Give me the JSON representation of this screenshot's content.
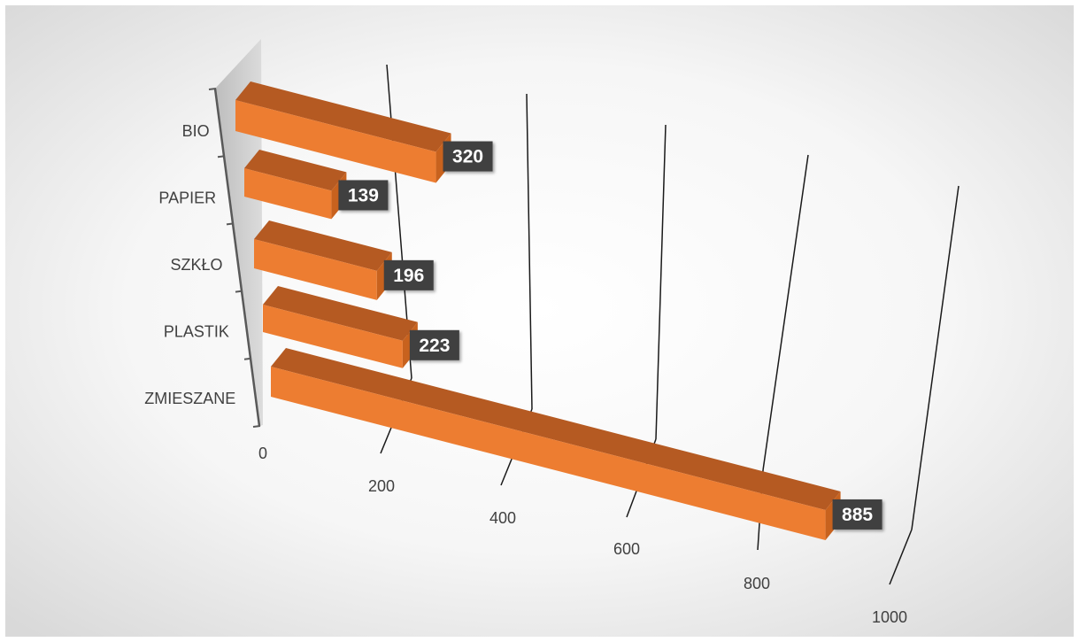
{
  "chart_data": {
    "type": "bar",
    "orientation": "horizontal",
    "style": "3d-perspective",
    "categories": [
      "BIO",
      "PAPIER",
      "SZKŁO",
      "PLASTIK",
      "ZMIESZANE"
    ],
    "values": [
      320,
      139,
      196,
      223,
      885
    ],
    "xlim": [
      0,
      1000
    ],
    "x_ticks": [
      0,
      200,
      400,
      600,
      800,
      1000
    ],
    "tick_labels": [
      "0",
      "200",
      "400",
      "600",
      "800",
      "1000"
    ],
    "grid": true,
    "legend": "none",
    "title": "",
    "xlabel": "",
    "ylabel": "",
    "colors": {
      "bar_front": "#ED7D31",
      "bar_top": "#B55A22",
      "bar_side": "#C8621E",
      "data_label_bg": "#404040",
      "wall": "#C9C9C9",
      "gridline": "#1a1a1a"
    }
  }
}
